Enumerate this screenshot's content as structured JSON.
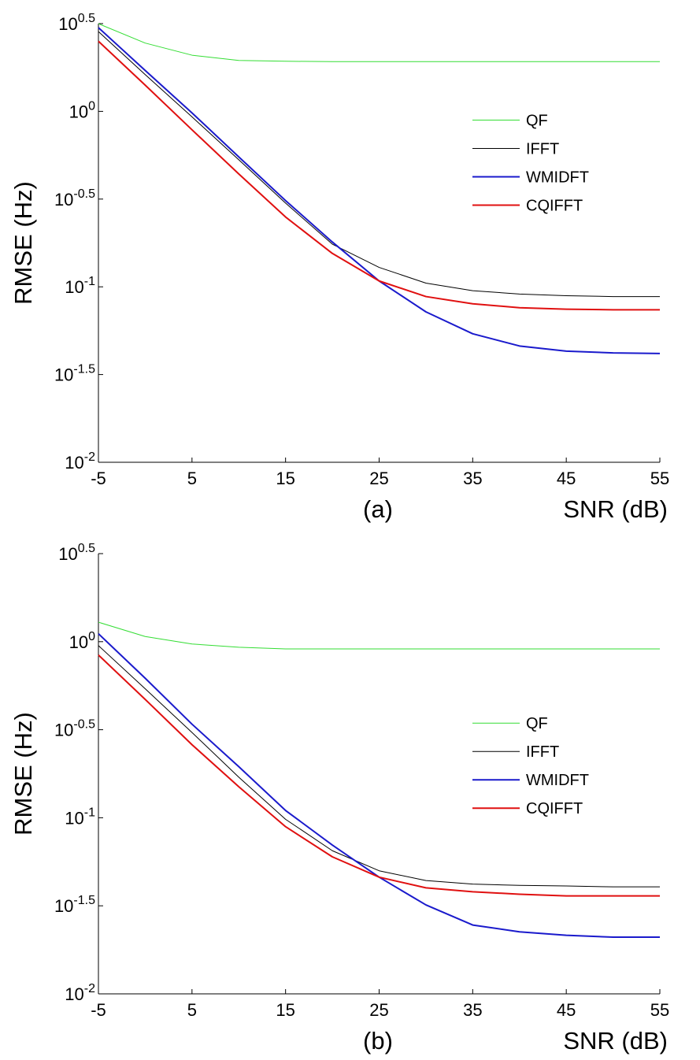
{
  "chart_data": [
    {
      "type": "line",
      "annotation": "(a)",
      "xlabel": "SNR (dB)",
      "ylabel": "RMSE (Hz)",
      "log_scale": true,
      "legend": "upper right",
      "x": [
        -5,
        0,
        5,
        10,
        15,
        20,
        25,
        30,
        35,
        40,
        45,
        50,
        55
      ],
      "xlim": [
        -5,
        55
      ],
      "xticks": [
        -5,
        5,
        15,
        25,
        35,
        45,
        55
      ],
      "ylim": [
        0.01,
        3.1623
      ],
      "yticks": [
        {
          "value": 0.01,
          "label": "10^-2"
        },
        {
          "value": 0.031623,
          "label": "10^-1.5"
        },
        {
          "value": 0.1,
          "label": "10^-1"
        },
        {
          "value": 0.31623,
          "label": "10^-0.5"
        },
        {
          "value": 1,
          "label": "10^0"
        },
        {
          "value": 3.1623,
          "label": "10^0.5"
        }
      ],
      "series": [
        {
          "name": "QF",
          "color": "#33dd33",
          "width": 1,
          "values": [
            3.16,
            2.45,
            2.09,
            1.95,
            1.93,
            1.92,
            1.92,
            1.92,
            1.92,
            1.92,
            1.92,
            1.92,
            1.92
          ]
        },
        {
          "name": "IFFT",
          "color": "#000000",
          "width": 1,
          "values": [
            2.85,
            1.62,
            0.93,
            0.53,
            0.3,
            0.175,
            0.129,
            0.105,
            0.095,
            0.091,
            0.089,
            0.088,
            0.088
          ]
        },
        {
          "name": "WMIDFT",
          "color": "#1a1acc",
          "width": 2,
          "values": [
            3.0,
            1.71,
            0.98,
            0.55,
            0.31,
            0.18,
            0.108,
            0.072,
            0.054,
            0.046,
            0.043,
            0.042,
            0.0417
          ]
        },
        {
          "name": "CQIFFT",
          "color": "#e01010",
          "width": 2,
          "values": [
            2.51,
            1.41,
            0.785,
            0.44,
            0.25,
            0.155,
            0.108,
            0.088,
            0.08,
            0.076,
            0.0745,
            0.074,
            0.074
          ]
        }
      ]
    },
    {
      "type": "line",
      "annotation": "(b)",
      "xlabel": "SNR (dB)",
      "ylabel": "RMSE (Hz)",
      "log_scale": true,
      "legend": "center right",
      "x": [
        -5,
        0,
        5,
        10,
        15,
        20,
        25,
        30,
        35,
        40,
        45,
        50,
        55
      ],
      "xlim": [
        -5,
        55
      ],
      "xticks": [
        -5,
        5,
        15,
        25,
        35,
        45,
        55
      ],
      "ylim": [
        0.01,
        3.1623
      ],
      "yticks": [
        {
          "value": 0.01,
          "label": "10^-2"
        },
        {
          "value": 0.031623,
          "label": "10^-1.5"
        },
        {
          "value": 0.1,
          "label": "10^-1"
        },
        {
          "value": 0.31623,
          "label": "10^-0.5"
        },
        {
          "value": 1,
          "label": "10^0"
        },
        {
          "value": 3.1623,
          "label": "10^0.5"
        }
      ],
      "series": [
        {
          "name": "QF",
          "color": "#33dd33",
          "width": 1,
          "values": [
            1.29,
            1.07,
            0.97,
            0.93,
            0.91,
            0.91,
            0.91,
            0.91,
            0.91,
            0.91,
            0.91,
            0.91,
            0.91
          ]
        },
        {
          "name": "IFFT",
          "color": "#000000",
          "width": 1,
          "values": [
            0.95,
            0.54,
            0.305,
            0.17,
            0.098,
            0.065,
            0.05,
            0.044,
            0.042,
            0.0413,
            0.041,
            0.0405,
            0.0405
          ]
        },
        {
          "name": "WMIDFT",
          "color": "#1a1acc",
          "width": 2,
          "values": [
            1.11,
            0.62,
            0.34,
            0.195,
            0.11,
            0.07,
            0.046,
            0.032,
            0.0246,
            0.0225,
            0.0215,
            0.021,
            0.021
          ]
        },
        {
          "name": "CQIFFT",
          "color": "#e01010",
          "width": 2,
          "values": [
            0.84,
            0.47,
            0.26,
            0.15,
            0.089,
            0.06,
            0.046,
            0.04,
            0.038,
            0.0368,
            0.036,
            0.036,
            0.036
          ]
        }
      ]
    }
  ]
}
